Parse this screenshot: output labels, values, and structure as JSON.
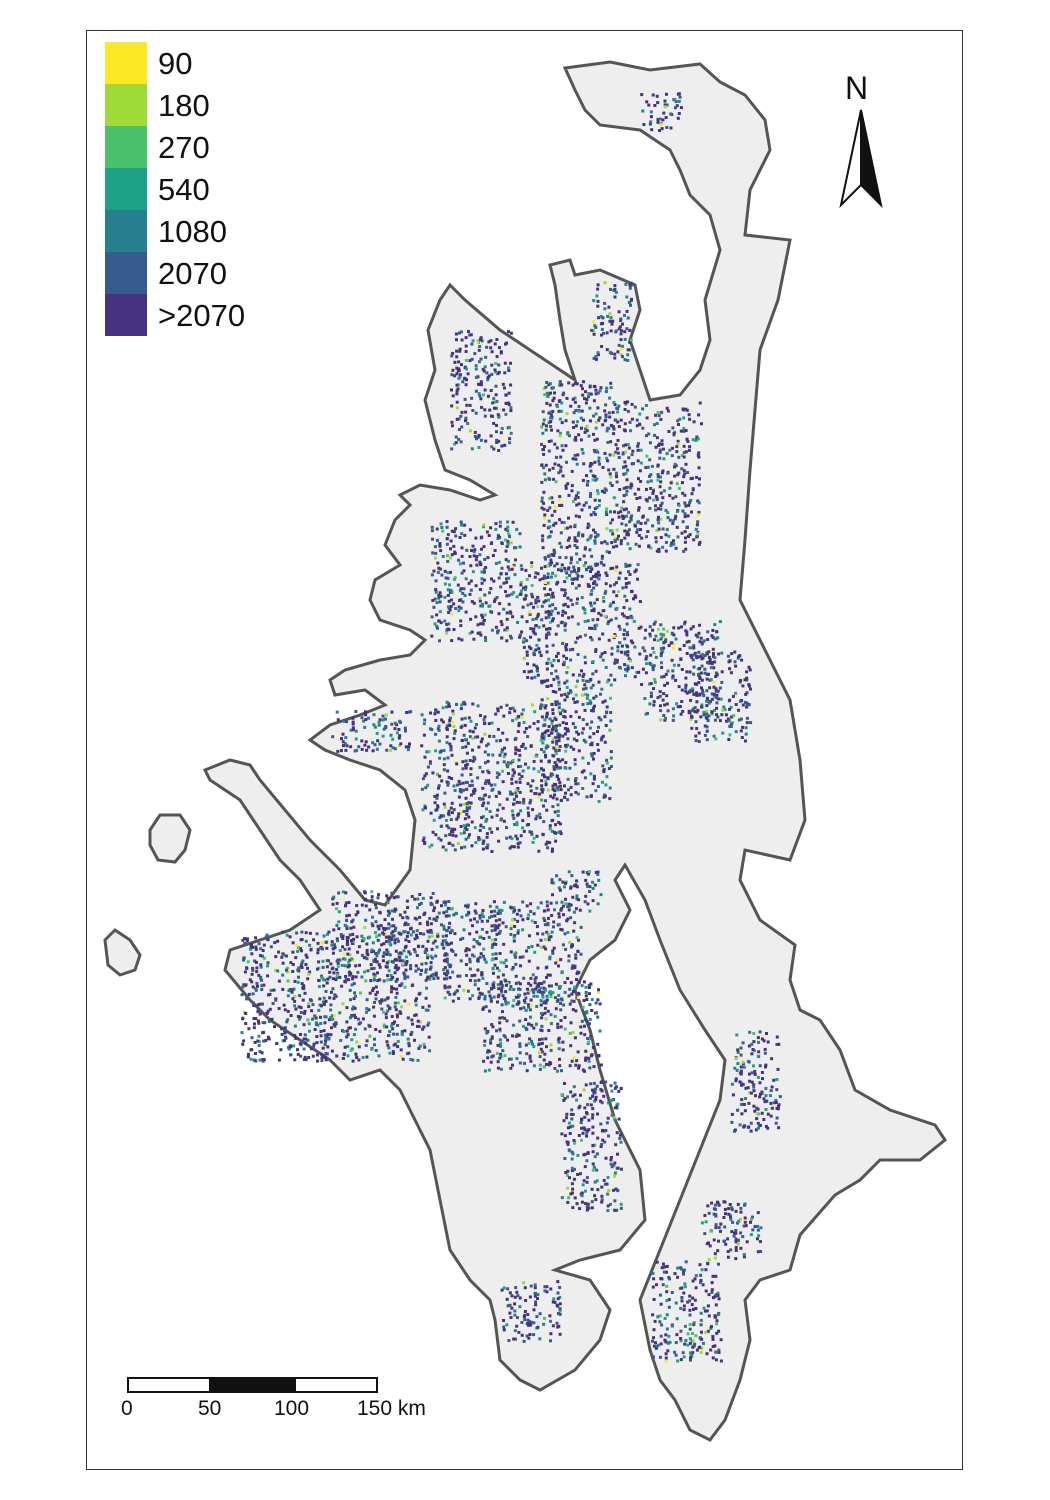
{
  "legend": {
    "items": [
      {
        "label": "90",
        "color": "#fde725"
      },
      {
        "label": "180",
        "color": "#a0da39"
      },
      {
        "label": "270",
        "color": "#4ac16d"
      },
      {
        "label": "540",
        "color": "#1fa187"
      },
      {
        "label": "1080",
        "color": "#277f8e"
      },
      {
        "label": "2070",
        "color": "#365c8d"
      },
      {
        "label": ">2070",
        "color": "#46327e"
      }
    ]
  },
  "north_arrow": {
    "label": "N"
  },
  "scale_bar": {
    "ticks": [
      "0",
      "50",
      "100",
      "150 km"
    ]
  },
  "colors": {
    "land_fill": "#eeeeee",
    "outline": "#555555",
    "frame": "#333333"
  }
}
